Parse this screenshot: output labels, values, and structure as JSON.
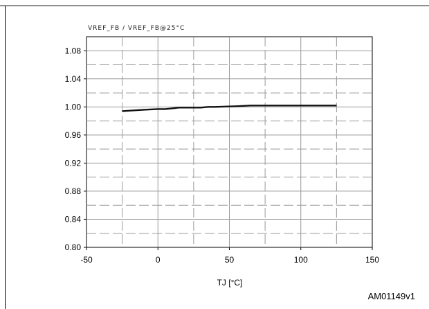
{
  "figure": {
    "code": "AM01149v1"
  },
  "chart_data": {
    "type": "line",
    "title": "",
    "ylabel": "VREF_FB / VREF_FB@25°C",
    "xlabel": "TJ [°C]",
    "xlim": [
      -50,
      150
    ],
    "ylim": [
      0.8,
      1.1
    ],
    "xticks": [
      -50,
      0,
      50,
      100,
      150
    ],
    "xtick_labels": [
      "-50",
      "0",
      "50",
      "100",
      "150"
    ],
    "yticks": [
      0.8,
      0.84,
      0.88,
      0.92,
      0.96,
      1.0,
      1.04,
      1.08
    ],
    "ytick_labels": [
      "0.80",
      "0.84",
      "0.88",
      "0.92",
      "0.96",
      "1.00",
      "1.04",
      "1.08"
    ],
    "grid": "major-solid, minor-dashed",
    "series": [
      {
        "x": [
          -25,
          -10,
          0,
          5,
          10,
          15,
          20,
          30,
          35,
          40,
          55,
          65,
          80,
          100,
          125
        ],
        "values": [
          0.994,
          0.996,
          0.997,
          0.997,
          0.998,
          0.999,
          0.999,
          0.999,
          1.0,
          1.0,
          1.001,
          1.002,
          1.002,
          1.002,
          1.002
        ]
      }
    ]
  }
}
